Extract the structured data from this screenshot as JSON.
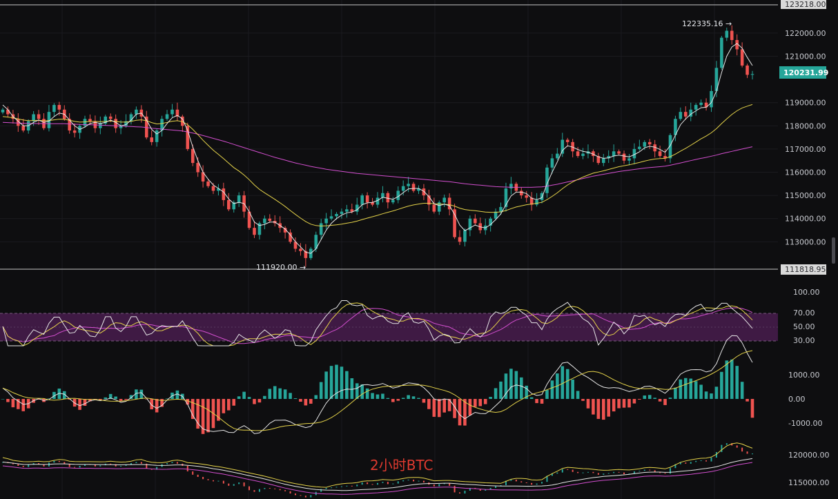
{
  "chart_data": [
    {
      "type": "candlestick",
      "panel": "price",
      "y_ticks": [
        "122000.00",
        "121000.00",
        "119000.00",
        "118000.00",
        "117000.00",
        "116000.00",
        "115000.00",
        "114000.00",
        "113000.00"
      ],
      "y_tick_values": [
        122000,
        121000,
        119000,
        118000,
        117000,
        116000,
        115000,
        114000,
        113000
      ],
      "ylim": [
        111818.95,
        123218.0
      ],
      "top_bound_label": "123218.00",
      "bottom_bound_label": "111818.95",
      "last_price_label": "120231.99",
      "last_price": 120231.99,
      "high_label": "122335.16",
      "high_value": 122335.16,
      "low_label": "111920.00",
      "low_value": 111920.0,
      "watermark": "2小时BTC",
      "colors": {
        "up": "#26a69a",
        "down": "#ef5350",
        "ma_fast": "#e8e8e8",
        "ma_mid": "#e6d44a",
        "ma_slow": "#d44fd0",
        "last_price_tag": "#26a69a"
      },
      "close_series": [
        118700,
        118500,
        118300,
        118000,
        117800,
        118200,
        118500,
        118300,
        117900,
        118600,
        118900,
        118700,
        118300,
        117800,
        117700,
        118000,
        118300,
        118200,
        117900,
        118100,
        118400,
        118300,
        117900,
        118000,
        118200,
        118500,
        118700,
        118400,
        117500,
        117300,
        117800,
        118300,
        118500,
        118700,
        118400,
        118000,
        117000,
        116400,
        116000,
        115600,
        115400,
        115200,
        115300,
        114800,
        114400,
        114700,
        115000,
        114300,
        113600,
        113300,
        113800,
        114000,
        113900,
        113800,
        113600,
        113400,
        113000,
        112700,
        112600,
        112300,
        112700,
        113300,
        113800,
        114000,
        114100,
        114200,
        114300,
        114400,
        114300,
        114600,
        115000,
        114700,
        114600,
        114900,
        115100,
        114700,
        114800,
        115200,
        115400,
        115500,
        115200,
        115300,
        115000,
        114600,
        114300,
        114700,
        114900,
        114400,
        113200,
        113000,
        113500,
        114000,
        113800,
        113500,
        113700,
        114000,
        114300,
        114500,
        115300,
        115500,
        115200,
        115000,
        114900,
        114600,
        114800,
        115100,
        116200,
        116600,
        116800,
        117400,
        117300,
        116900,
        116700,
        116800,
        116900,
        116700,
        116400,
        116600,
        116700,
        116900,
        116800,
        116500,
        116600,
        117000,
        117100,
        117300,
        117200,
        116900,
        116700,
        116600,
        117600,
        118300,
        118600,
        118400,
        118700,
        118900,
        119000,
        118800,
        119500,
        120500,
        121800,
        122100,
        121700,
        121300,
        120600,
        120200,
        120232
      ],
      "ma_fast": [
        118900,
        118700,
        118400,
        118200,
        118000,
        118000,
        118150,
        118250,
        118150,
        118200,
        118400,
        118550,
        118500,
        118250,
        118000,
        117850,
        117950,
        118100,
        118150,
        118100,
        118150,
        118250,
        118150,
        118000,
        118050,
        118250,
        118500,
        118550,
        118250,
        117850,
        117650,
        117800,
        118100,
        118350,
        118450,
        118300,
        117800,
        117100,
        116500,
        116000,
        115700,
        115450,
        115300,
        115150,
        114850,
        114650,
        114700,
        114650,
        114300,
        113850,
        113700,
        113750,
        113850,
        113850,
        113700,
        113550,
        113300,
        113000,
        112780,
        112550,
        112500,
        112700,
        113100,
        113500,
        113800,
        114000,
        114150,
        114250,
        114280,
        114380,
        114600,
        114680,
        114700,
        114780,
        114920,
        114880,
        114830,
        114950,
        115120,
        115280,
        115300,
        115300,
        115180,
        114950,
        114640,
        114560,
        114620,
        114560,
        114180,
        113720,
        113480,
        113600,
        113720,
        113640,
        113600,
        113740,
        113960,
        114200,
        114600,
        114980,
        115140,
        115140,
        115080,
        114880,
        114820,
        114900,
        115500,
        116000,
        116440,
        116940,
        117140,
        117080,
        116980,
        116900,
        116860,
        116780,
        116660,
        116600,
        116620,
        116700,
        116740,
        116700,
        116660,
        116760,
        116880,
        117050,
        117120,
        117080,
        116980,
        116860,
        117150,
        117600,
        118050,
        118300,
        118500,
        118650,
        118780,
        118800,
        119000,
        119500,
        120300,
        121000,
        121400,
        121550,
        121350,
        120950,
        120600
      ],
      "ma_mid": [
        118400,
        118380,
        118350,
        118300,
        118250,
        118220,
        118230,
        118240,
        118220,
        118230,
        118260,
        118290,
        118280,
        118240,
        118190,
        118160,
        118170,
        118190,
        118190,
        118180,
        118190,
        118210,
        118190,
        118160,
        118160,
        118190,
        118240,
        118260,
        118220,
        118140,
        118080,
        118100,
        118150,
        118200,
        118220,
        118180,
        118050,
        117850,
        117620,
        117380,
        117160,
        116950,
        116770,
        116590,
        116390,
        116200,
        116050,
        115880,
        115680,
        115450,
        115260,
        115110,
        114970,
        114830,
        114680,
        114520,
        114350,
        114180,
        114020,
        113870,
        113760,
        113700,
        113680,
        113690,
        113710,
        113730,
        113760,
        113800,
        113840,
        113890,
        113960,
        114020,
        114080,
        114140,
        114210,
        114270,
        114330,
        114400,
        114470,
        114540,
        114590,
        114630,
        114660,
        114660,
        114640,
        114630,
        114620,
        114600,
        114540,
        114450,
        114390,
        114360,
        114340,
        114310,
        114280,
        114270,
        114270,
        114290,
        114350,
        114430,
        114500,
        114550,
        114600,
        114630,
        114660,
        114700,
        114820,
        114960,
        115110,
        115290,
        115450,
        115580,
        115690,
        115790,
        115880,
        115960,
        116010,
        116060,
        116120,
        116180,
        116240,
        116280,
        116320,
        116370,
        116420,
        116480,
        116530,
        116570,
        116590,
        116600,
        116670,
        116780,
        116910,
        117030,
        117160,
        117300,
        117440,
        117560,
        117700,
        117880,
        118100,
        118300,
        118490,
        118650,
        118770,
        118850,
        118920
      ],
      "ma_slow": [
        118150,
        118140,
        118130,
        118120,
        118110,
        118100,
        118100,
        118100,
        118090,
        118090,
        118090,
        118090,
        118090,
        118080,
        118070,
        118060,
        118050,
        118050,
        118040,
        118030,
        118020,
        118010,
        118000,
        117990,
        117980,
        117970,
        117960,
        117950,
        117930,
        117900,
        117880,
        117860,
        117840,
        117820,
        117800,
        117780,
        117740,
        117690,
        117640,
        117580,
        117520,
        117460,
        117400,
        117340,
        117270,
        117200,
        117130,
        117060,
        116990,
        116920,
        116850,
        116780,
        116710,
        116640,
        116580,
        116520,
        116460,
        116400,
        116350,
        116300,
        116250,
        116210,
        116170,
        116130,
        116100,
        116070,
        116040,
        116010,
        115980,
        115950,
        115930,
        115910,
        115890,
        115870,
        115850,
        115830,
        115810,
        115790,
        115770,
        115750,
        115730,
        115710,
        115690,
        115670,
        115650,
        115630,
        115610,
        115590,
        115560,
        115530,
        115500,
        115480,
        115460,
        115440,
        115420,
        115400,
        115380,
        115370,
        115360,
        115350,
        115350,
        115350,
        115350,
        115350,
        115360,
        115370,
        115400,
        115440,
        115480,
        115530,
        115580,
        115630,
        115680,
        115730,
        115780,
        115830,
        115870,
        115910,
        115950,
        115990,
        116030,
        116060,
        116090,
        116120,
        116150,
        116180,
        116200,
        116220,
        116240,
        116260,
        116300,
        116350,
        116400,
        116450,
        116500,
        116550,
        116600,
        116640,
        116690,
        116740,
        116800,
        116850,
        116900,
        116950,
        117000,
        117050,
        117100
      ]
    },
    {
      "type": "line",
      "panel": "rsi",
      "y_ticks": [
        "100.00",
        "70.00",
        "50.00",
        "30.00"
      ],
      "y_tick_values": [
        100,
        70,
        50,
        30
      ],
      "band": [
        30,
        70
      ],
      "colors": {
        "fast": "#e8e8e8",
        "mid": "#e6d44a",
        "slow": "#d44fd0",
        "band_fill": "#3f1a44",
        "band_line": "#7a5a80"
      }
    },
    {
      "type": "bar",
      "panel": "macd",
      "y_ticks": [
        "1000.00",
        "0.00",
        "-1000.00"
      ],
      "y_tick_values": [
        1000,
        0,
        -1000
      ],
      "colors": {
        "pos": "#26a69a",
        "neg": "#ef5350",
        "dif": "#e8e8e8",
        "dea": "#e6d44a"
      }
    },
    {
      "type": "line",
      "panel": "overview",
      "y_ticks": [
        "120000.00",
        "115000.00"
      ],
      "y_tick_values": [
        120000,
        115000
      ],
      "colors": {
        "upper": "#e6d44a",
        "mid": "#e8e8e8",
        "lower": "#d44fd0"
      }
    }
  ]
}
